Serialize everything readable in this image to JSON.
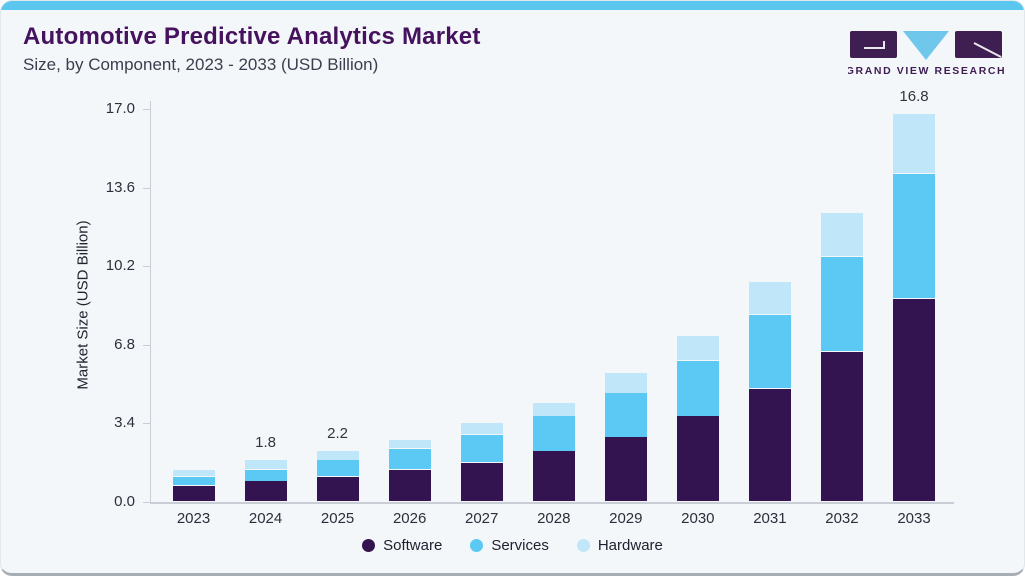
{
  "header": {
    "title": "Automotive Predictive Analytics Market",
    "subtitle": "Size, by Component, 2023 - 2033 (USD Billion)"
  },
  "logo": {
    "text": "GRAND VIEW RESEARCH",
    "purple": "#3f1e52",
    "blue": "#6fc7ec"
  },
  "colors": {
    "card_background": "#f3f7fa",
    "top_accent_bar": "#5bc7ef",
    "title_text": "#46125e",
    "axis_line": "#c9ced6"
  },
  "chart_data": {
    "type": "bar",
    "stacked": true,
    "title": "Automotive Predictive Analytics Market Size, by Component, 2023 - 2033 (USD Billion)",
    "categories": [
      "2023",
      "2024",
      "2025",
      "2026",
      "2027",
      "2028",
      "2029",
      "2030",
      "2031",
      "2032",
      "2033"
    ],
    "series": [
      {
        "name": "Software",
        "color": "#331450",
        "values": [
          0.7,
          0.9,
          1.1,
          1.4,
          1.7,
          2.2,
          2.8,
          3.7,
          4.9,
          6.5,
          8.8
        ]
      },
      {
        "name": "Services",
        "color": "#5bc9f4",
        "values": [
          0.4,
          0.5,
          0.7,
          0.9,
          1.2,
          1.5,
          1.9,
          2.4,
          3.2,
          4.1,
          5.4
        ]
      },
      {
        "name": "Hardware",
        "color": "#bfe7f9",
        "values": [
          0.3,
          0.4,
          0.4,
          0.4,
          0.5,
          0.6,
          0.9,
          1.1,
          1.4,
          1.9,
          2.6
        ]
      }
    ],
    "totals": [
      1.4,
      1.8,
      2.2,
      2.7,
      3.4,
      4.3,
      5.6,
      7.2,
      9.5,
      12.5,
      16.8
    ],
    "bar_value_labels": [
      "",
      "1.8",
      "2.2",
      "",
      "",
      "",
      "",
      "",
      "",
      "",
      "16.8"
    ],
    "ylabel": "Market Size (USD Billion)",
    "ytick_labels": [
      "0.0",
      "3.4",
      "6.8",
      "10.2",
      "13.6",
      "17.0"
    ],
    "ylim": [
      0,
      17
    ],
    "grid": false,
    "legend_position": "bottom"
  }
}
